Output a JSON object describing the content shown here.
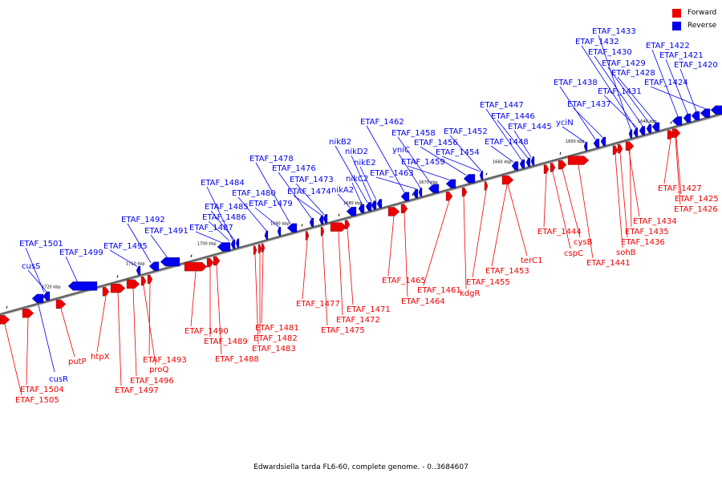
{
  "caption": "Edwardsiella tarda FL6-60, complete genome. - 0..3684607",
  "legend": [
    {
      "label": "Forward",
      "color": "#ee0000"
    },
    {
      "label": "Reverse",
      "color": "#0000ee"
    }
  ],
  "colors": {
    "forward": "#ee0000",
    "reverse": "#0000ee",
    "axis": "#666666"
  },
  "ticks": [
    "1720 kbp",
    "1710 kbp",
    "1700 kbp",
    "1690 kbp",
    "1680 kbp",
    "1670 kbp",
    "1660 kbp",
    "1650 kbp",
    "1640 kbp"
  ],
  "reverse_genes": [
    "ETAF_1501",
    "cusS",
    "ETAF_1499",
    "ETAF_1495",
    "ETAF_1492",
    "ETAF_1491",
    "ETAF_1487",
    "ETAF_1486",
    "ETAF_1485",
    "ETAF_1484",
    "ETAF_1480",
    "ETAF_1479",
    "ETAF_1478",
    "ETAF_1476",
    "ETAF_1474",
    "ETAF_1473",
    "nikA2",
    "nikC2",
    "nikB2",
    "nikD2",
    "nikE2",
    "ETAF_1462",
    "ETAF_1463",
    "yniC",
    "ETAF_1458",
    "ETAF_1459",
    "ETAF_1456",
    "ETAF_1454",
    "ETAF_1452",
    "ETAF_1448",
    "ETAF_1447",
    "ETAF_1446",
    "ETAF_1445",
    "yciN",
    "ETAF_1438",
    "ETAF_1437",
    "ETAF_1433",
    "ETAF_1432",
    "ETAF_1430",
    "ETAF_1429",
    "ETAF_1428",
    "ETAF_1431",
    "ETAF_1422",
    "ETAF_1421",
    "ETAF_1420",
    "ETAF_1424",
    "cusR"
  ],
  "forward_genes": [
    "ETAF_1505",
    "ETAF_1504",
    "putP",
    "htpX",
    "ETAF_1497",
    "ETAF_1496",
    "proQ",
    "ETAF_1493",
    "ETAF_1490",
    "ETAF_1489",
    "ETAF_1488",
    "ETAF_1483",
    "ETAF_1482",
    "ETAF_1481",
    "ETAF_1477",
    "ETAF_1475",
    "ETAF_1472",
    "ETAF_1471",
    "ETAF_1465",
    "ETAF_1464",
    "ETAF_1461",
    "kdgR",
    "ETAF_1455",
    "ETAF_1453",
    "terC1",
    "ETAF_1444",
    "cspC",
    "cysB",
    "ETAF_1441",
    "sohB",
    "ETAF_1436",
    "ETAF_1435",
    "ETAF_1434",
    "ETAF_1427",
    "ETAF_1426",
    "ETAF_1425"
  ]
}
